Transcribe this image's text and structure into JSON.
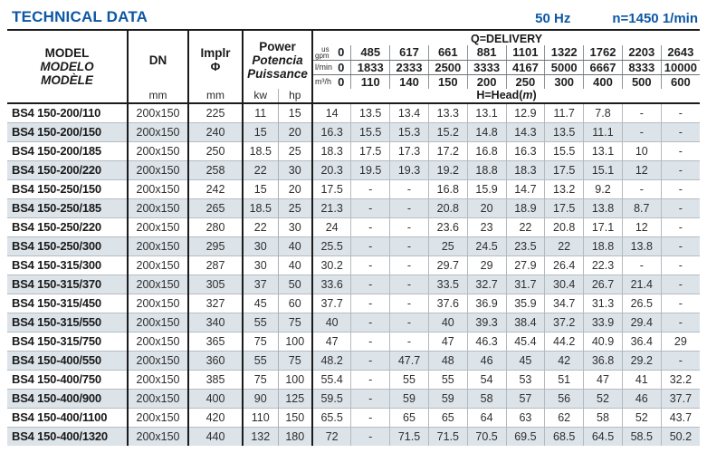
{
  "page": {
    "title": "TECHNICAL DATA",
    "frequency": "50 Hz",
    "speed": "n=1450 1/min"
  },
  "colors": {
    "accent_blue": "#0d57a5",
    "stripe": "#dce3e9",
    "border_black": "#1b1b1b",
    "thin_line": "#b6bcc2"
  },
  "table": {
    "header": {
      "model_labels": [
        "MODEL",
        "MODELO",
        "MODÈLE"
      ],
      "dn_label": "DN",
      "implr_label": "Implr",
      "implr_symbol": "Φ",
      "power_labels": [
        "Power",
        "Potencia",
        "Puissance"
      ],
      "units": {
        "dn": "mm",
        "implr": "mm",
        "kw": "kw",
        "hp": "hp"
      },
      "delivery_title": "Q=DELIVERY",
      "head_label": {
        "prefix": "H=Head(",
        "unit": "m",
        "suffix": ")"
      },
      "flow_rows": [
        {
          "label_lines": [
            "us",
            "gpm"
          ],
          "values": [
            "0",
            "485",
            "617",
            "661",
            "881",
            "1101",
            "1322",
            "1762",
            "2203",
            "2643"
          ]
        },
        {
          "label_lines": [
            "l/min"
          ],
          "values": [
            "0",
            "1833",
            "2333",
            "2500",
            "3333",
            "4167",
            "5000",
            "6667",
            "8333",
            "10000"
          ]
        },
        {
          "label_lines": [
            "m³/h"
          ],
          "values": [
            "0",
            "110",
            "140",
            "150",
            "200",
            "250",
            "300",
            "400",
            "500",
            "600"
          ]
        }
      ]
    },
    "rows": [
      {
        "model": "BS4 150-200/110",
        "dn": "200x150",
        "implr": "225",
        "kw": "11",
        "hp": "15",
        "head": [
          "14",
          "13.5",
          "13.4",
          "13.3",
          "13.1",
          "12.9",
          "11.7",
          "7.8",
          "-",
          "-"
        ]
      },
      {
        "model": "BS4 150-200/150",
        "dn": "200x150",
        "implr": "240",
        "kw": "15",
        "hp": "20",
        "head": [
          "16.3",
          "15.5",
          "15.3",
          "15.2",
          "14.8",
          "14.3",
          "13.5",
          "11.1",
          "-",
          "-"
        ]
      },
      {
        "model": "BS4 150-200/185",
        "dn": "200x150",
        "implr": "250",
        "kw": "18.5",
        "hp": "25",
        "head": [
          "18.3",
          "17.5",
          "17.3",
          "17.2",
          "16.8",
          "16.3",
          "15.5",
          "13.1",
          "10",
          "-"
        ]
      },
      {
        "model": "BS4 150-200/220",
        "dn": "200x150",
        "implr": "258",
        "kw": "22",
        "hp": "30",
        "head": [
          "20.3",
          "19.5",
          "19.3",
          "19.2",
          "18.8",
          "18.3",
          "17.5",
          "15.1",
          "12",
          "-"
        ]
      },
      {
        "model": "BS4 150-250/150",
        "dn": "200x150",
        "implr": "242",
        "kw": "15",
        "hp": "20",
        "head": [
          "17.5",
          "-",
          "-",
          "16.8",
          "15.9",
          "14.7",
          "13.2",
          "9.2",
          "-",
          "-"
        ]
      },
      {
        "model": "BS4 150-250/185",
        "dn": "200x150",
        "implr": "265",
        "kw": "18.5",
        "hp": "25",
        "head": [
          "21.3",
          "-",
          "-",
          "20.8",
          "20",
          "18.9",
          "17.5",
          "13.8",
          "8.7",
          "-"
        ]
      },
      {
        "model": "BS4 150-250/220",
        "dn": "200x150",
        "implr": "280",
        "kw": "22",
        "hp": "30",
        "head": [
          "24",
          "-",
          "-",
          "23.6",
          "23",
          "22",
          "20.8",
          "17.1",
          "12",
          "-"
        ]
      },
      {
        "model": "BS4 150-250/300",
        "dn": "200x150",
        "implr": "295",
        "kw": "30",
        "hp": "40",
        "head": [
          "25.5",
          "-",
          "-",
          "25",
          "24.5",
          "23.5",
          "22",
          "18.8",
          "13.8",
          "-"
        ]
      },
      {
        "model": "BS4 150-315/300",
        "dn": "200x150",
        "implr": "287",
        "kw": "30",
        "hp": "40",
        "head": [
          "30.2",
          "-",
          "-",
          "29.7",
          "29",
          "27.9",
          "26.4",
          "22.3",
          "-",
          "-"
        ]
      },
      {
        "model": "BS4 150-315/370",
        "dn": "200x150",
        "implr": "305",
        "kw": "37",
        "hp": "50",
        "head": [
          "33.6",
          "-",
          "-",
          "33.5",
          "32.7",
          "31.7",
          "30.4",
          "26.7",
          "21.4",
          "-"
        ]
      },
      {
        "model": "BS4 150-315/450",
        "dn": "200x150",
        "implr": "327",
        "kw": "45",
        "hp": "60",
        "head": [
          "37.7",
          "-",
          "-",
          "37.6",
          "36.9",
          "35.9",
          "34.7",
          "31.3",
          "26.5",
          "-"
        ]
      },
      {
        "model": "BS4 150-315/550",
        "dn": "200x150",
        "implr": "340",
        "kw": "55",
        "hp": "75",
        "head": [
          "40",
          "-",
          "-",
          "40",
          "39.3",
          "38.4",
          "37.2",
          "33.9",
          "29.4",
          "-"
        ]
      },
      {
        "model": "BS4 150-315/750",
        "dn": "200x150",
        "implr": "365",
        "kw": "75",
        "hp": "100",
        "head": [
          "47",
          "-",
          "-",
          "47",
          "46.3",
          "45.4",
          "44.2",
          "40.9",
          "36.4",
          "29"
        ]
      },
      {
        "model": "BS4 150-400/550",
        "dn": "200x150",
        "implr": "360",
        "kw": "55",
        "hp": "75",
        "head": [
          "48.2",
          "-",
          "47.7",
          "48",
          "46",
          "45",
          "42",
          "36.8",
          "29.2",
          "-"
        ]
      },
      {
        "model": "BS4 150-400/750",
        "dn": "200x150",
        "implr": "385",
        "kw": "75",
        "hp": "100",
        "head": [
          "55.4",
          "-",
          "55",
          "55",
          "54",
          "53",
          "51",
          "47",
          "41",
          "32.2"
        ]
      },
      {
        "model": "BS4 150-400/900",
        "dn": "200x150",
        "implr": "400",
        "kw": "90",
        "hp": "125",
        "head": [
          "59.5",
          "-",
          "59",
          "59",
          "58",
          "57",
          "56",
          "52",
          "46",
          "37.7"
        ]
      },
      {
        "model": "BS4 150-400/1100",
        "dn": "200x150",
        "implr": "420",
        "kw": "110",
        "hp": "150",
        "head": [
          "65.5",
          "-",
          "65",
          "65",
          "64",
          "63",
          "62",
          "58",
          "52",
          "43.7"
        ]
      },
      {
        "model": "BS4 150-400/1320",
        "dn": "200x150",
        "implr": "440",
        "kw": "132",
        "hp": "180",
        "head": [
          "72",
          "-",
          "71.5",
          "71.5",
          "70.5",
          "69.5",
          "68.5",
          "64.5",
          "58.5",
          "50.2"
        ]
      }
    ]
  }
}
